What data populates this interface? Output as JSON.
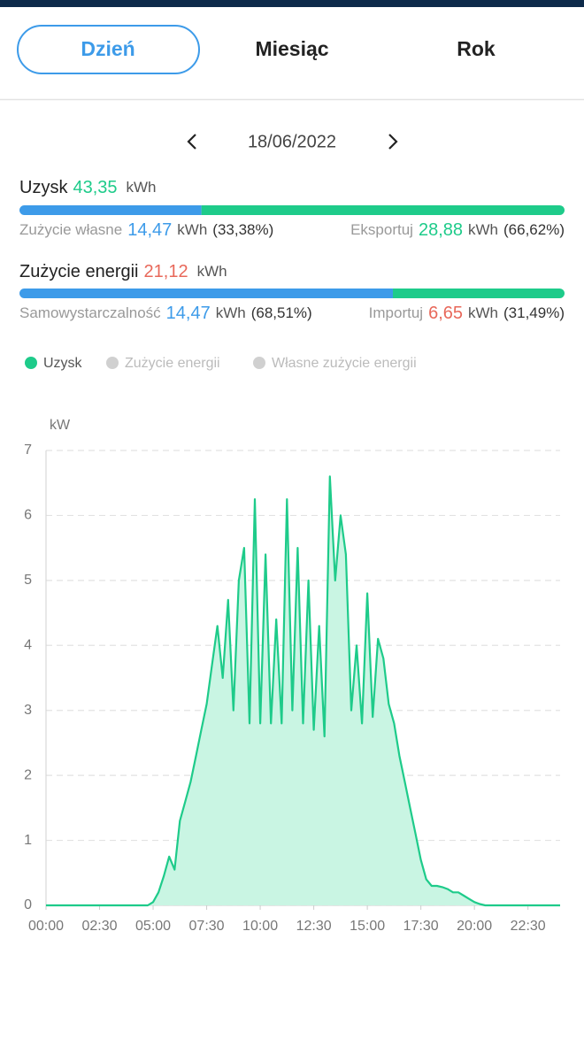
{
  "tabs": [
    {
      "label": "Dzień",
      "active": true
    },
    {
      "label": "Miesiąc",
      "active": false
    },
    {
      "label": "Rok",
      "active": false
    }
  ],
  "date": "18/06/2022",
  "yield": {
    "label": "Uzysk",
    "value": "43,35",
    "unit": "kWh",
    "own": {
      "label": "Zużycie własne",
      "value": "14,47",
      "unit": "kWh",
      "share": "(33,38%)"
    },
    "export": {
      "label": "Eksportuj",
      "value": "28,88",
      "unit": "kWh",
      "share": "(66,62%)"
    }
  },
  "consumption": {
    "label": "Zużycie energii",
    "value": "21,12",
    "unit": "kWh",
    "self": {
      "label": "Samowystarczalność",
      "value": "14,47",
      "unit": "kWh",
      "share": "(68,51%)"
    },
    "import": {
      "label": "Importuj",
      "value": "6,65",
      "unit": "kWh",
      "share": "(31,49%)"
    }
  },
  "legend": [
    {
      "label": "Uzysk",
      "color": "#1ecb8a",
      "active": true
    },
    {
      "label": "Zużycie energii",
      "color": "#d0d0d0",
      "active": false
    },
    {
      "label": "Własne zużycie energii",
      "color": "#d0d0d0",
      "active": false
    }
  ],
  "chart_data": {
    "type": "area",
    "y_unit": "kW",
    "x": [
      0,
      0.25,
      0.5,
      0.75,
      1,
      1.25,
      1.5,
      1.75,
      2,
      2.25,
      2.5,
      2.75,
      3,
      3.25,
      3.5,
      3.75,
      4,
      4.25,
      4.5,
      4.75,
      5,
      5.25,
      5.5,
      5.75,
      6,
      6.25,
      6.5,
      6.75,
      7,
      7.25,
      7.5,
      7.75,
      8,
      8.25,
      8.5,
      8.75,
      9,
      9.25,
      9.5,
      9.75,
      10,
      10.25,
      10.5,
      10.75,
      11,
      11.25,
      11.5,
      11.75,
      12,
      12.25,
      12.5,
      12.75,
      13,
      13.25,
      13.5,
      13.75,
      14,
      14.25,
      14.5,
      14.75,
      15,
      15.25,
      15.5,
      15.75,
      16,
      16.25,
      16.5,
      16.75,
      17,
      17.25,
      17.5,
      17.75,
      18,
      18.25,
      18.5,
      18.75,
      19,
      19.25,
      19.5,
      19.75,
      20,
      20.25,
      20.5,
      20.75,
      21,
      21.25,
      21.5,
      21.75,
      22,
      22.25,
      22.5,
      22.75,
      23,
      23.25,
      23.5,
      23.75,
      24
    ],
    "series": [
      {
        "name": "Uzysk",
        "color": "#1ecb8a",
        "fill": "#c9f5e3",
        "values": [
          0,
          0,
          0,
          0,
          0,
          0,
          0,
          0,
          0,
          0,
          0,
          0,
          0,
          0,
          0,
          0,
          0,
          0,
          0,
          0,
          0.05,
          0.2,
          0.45,
          0.75,
          0.55,
          1.3,
          1.6,
          1.9,
          2.3,
          2.7,
          3.1,
          3.7,
          4.3,
          3.5,
          4.7,
          3.0,
          5.0,
          5.5,
          2.8,
          6.25,
          2.8,
          5.4,
          2.8,
          4.4,
          2.8,
          6.25,
          3.0,
          5.5,
          2.8,
          5.0,
          2.7,
          4.3,
          2.6,
          6.6,
          5.0,
          6.0,
          5.4,
          3.0,
          4.0,
          2.8,
          4.8,
          2.9,
          4.1,
          3.8,
          3.1,
          2.8,
          2.3,
          1.9,
          1.5,
          1.1,
          0.7,
          0.4,
          0.3,
          0.3,
          0.28,
          0.25,
          0.2,
          0.2,
          0.15,
          0.1,
          0.05,
          0.02,
          0,
          0,
          0,
          0,
          0,
          0,
          0,
          0,
          0,
          0,
          0,
          0,
          0,
          0,
          0
        ]
      }
    ],
    "xlim": [
      0,
      24
    ],
    "xticks": [
      {
        "value": 0,
        "label": "00:00"
      },
      {
        "value": 2.5,
        "label": "02:30"
      },
      {
        "value": 5,
        "label": "05:00"
      },
      {
        "value": 7.5,
        "label": "07:30"
      },
      {
        "value": 10,
        "label": "10:00"
      },
      {
        "value": 12.5,
        "label": "12:30"
      },
      {
        "value": 15,
        "label": "15:00"
      },
      {
        "value": 17.5,
        "label": "17:30"
      },
      {
        "value": 20,
        "label": "20:00"
      },
      {
        "value": 22.5,
        "label": "22:30"
      }
    ],
    "ylim": [
      0,
      7
    ],
    "yticks": [
      0,
      1,
      2,
      3,
      4,
      5,
      6,
      7
    ],
    "grid": true
  }
}
